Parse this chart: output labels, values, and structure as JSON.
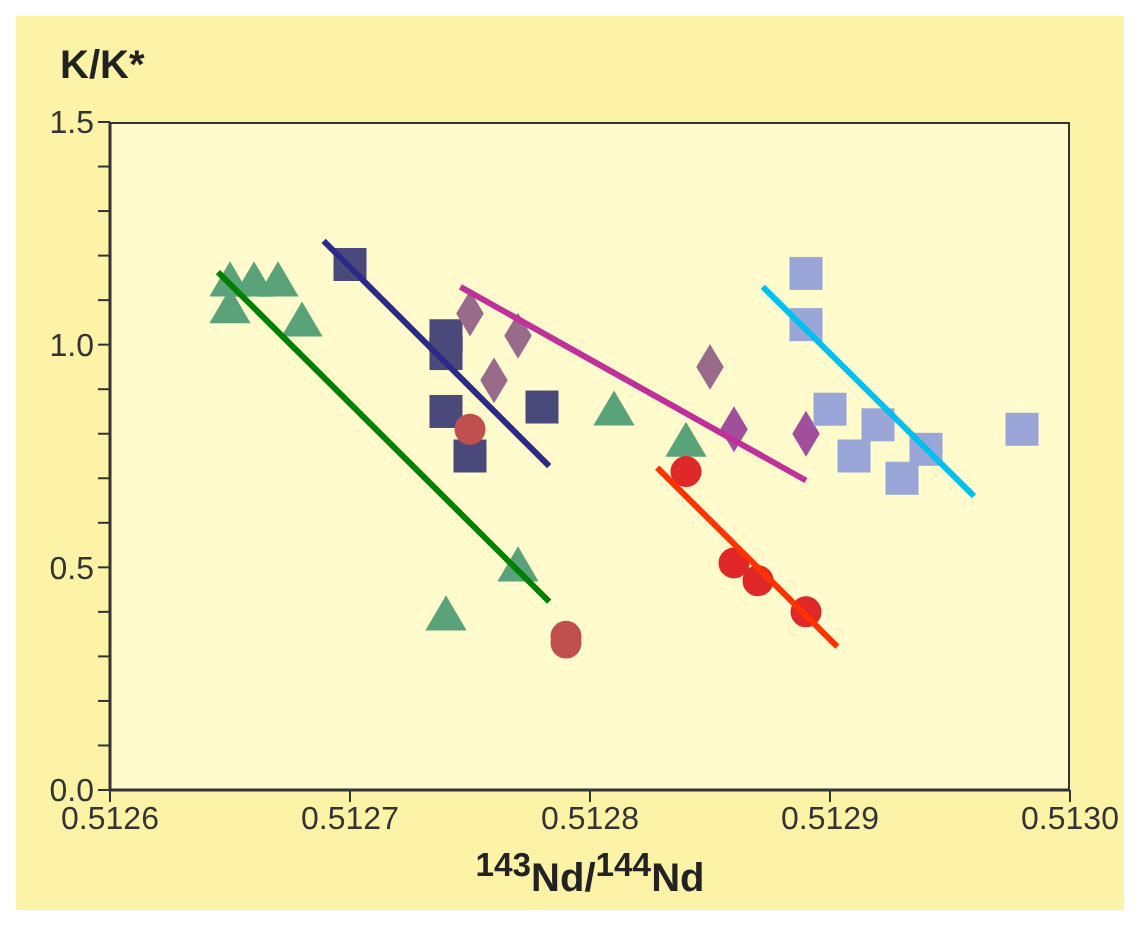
{
  "chart_data": {
    "type": "scatter",
    "ylabel": "K/K*",
    "xlabel": "$^{143}$Nd/$^{144}$Nd",
    "xlim": [
      0.5126,
      0.513
    ],
    "xticks": [
      0.5126,
      0.5127,
      0.5128,
      0.5129,
      {
        "value": 0.513,
        "label": "0.5130"
      }
    ],
    "ylim": [
      0,
      1.5
    ],
    "yticks": [
      {
        "value": 0,
        "label": "0.0"
      },
      {
        "value": 0.1,
        "label": null
      },
      {
        "value": 0.2,
        "label": null
      },
      {
        "value": 0.3,
        "label": null
      },
      {
        "value": 0.4,
        "label": null
      },
      0.5,
      {
        "value": 0.6,
        "label": null
      },
      {
        "value": 0.7,
        "label": null
      },
      {
        "value": 0.8,
        "label": null
      },
      {
        "value": 0.9,
        "label": null
      },
      {
        "value": 1,
        "label": "1.0"
      },
      {
        "value": 1.1,
        "label": null
      },
      {
        "value": 1.2,
        "label": null
      },
      {
        "value": 1.3,
        "label": null
      },
      {
        "value": 1.4,
        "label": null
      },
      1.5
    ],
    "series": [
      {
        "marker": "triangle",
        "color": "#5aa37a",
        "x": [
          0.51265,
          0.51265,
          0.51266,
          0.51267,
          0.51268,
          0.51281,
          0.51284,
          0.51277,
          0.51274
        ],
        "values": [
          1.14,
          1.08,
          1.14,
          1.14,
          1.05,
          0.85,
          0.78,
          0.5,
          0.39
        ]
      },
      {
        "marker": "square",
        "color": "#4a4a7a",
        "x": [
          0.5127,
          0.51274,
          0.51274,
          0.51274,
          0.51275,
          0.51278
        ],
        "values": [
          1.18,
          1.02,
          0.98,
          0.85,
          0.75,
          0.86
        ]
      },
      {
        "marker": "circle",
        "color": "#c0504d",
        "x": [
          0.51275,
          0.51279,
          0.51279
        ],
        "values": [
          0.81,
          0.345,
          0.33
        ]
      },
      {
        "marker": "diamond",
        "color": "#9a6a8a",
        "x": [
          0.51275,
          0.51277,
          0.51276,
          0.51285
        ],
        "values": [
          1.07,
          1.02,
          0.92,
          0.95
        ]
      },
      {
        "marker": "diamond",
        "color": "#a0509a",
        "x": [
          0.51286,
          0.51289
        ],
        "values": [
          0.81,
          0.8
        ]
      },
      {
        "marker": "circle",
        "color": "#e02828",
        "x": [
          0.51284,
          0.51286,
          0.51287,
          0.51289
        ],
        "values": [
          0.715,
          0.51,
          0.47,
          0.4
        ]
      },
      {
        "marker": "square",
        "color": "#9aa6d8",
        "x": [
          0.51289,
          0.51289,
          0.5129,
          0.51291,
          0.51292,
          0.51293,
          0.51294,
          0.51298
        ],
        "values": [
          1.16,
          1.045,
          0.855,
          0.75,
          0.82,
          0.7,
          0.765,
          0.81
        ]
      },
      {
        "type": "line",
        "color": "#008000",
        "x": [
          0.512645,
          0.512783
        ],
        "values": [
          1.163,
          0.423
        ]
      },
      {
        "type": "line",
        "color": "#2a2a8a",
        "x": [
          0.512689,
          0.512783
        ],
        "values": [
          1.233,
          0.727
        ]
      },
      {
        "type": "line",
        "color": "#c0309a",
        "x": [
          0.512746,
          0.51289
        ],
        "values": [
          1.13,
          0.695
        ]
      },
      {
        "type": "line",
        "color": "#ff3300",
        "x": [
          0.512828,
          0.512903
        ],
        "values": [
          0.724,
          0.322
        ]
      },
      {
        "type": "line",
        "color": "#00c0f0",
        "x": [
          0.512872,
          0.51296
        ],
        "values": [
          1.13,
          0.66
        ]
      }
    ]
  }
}
